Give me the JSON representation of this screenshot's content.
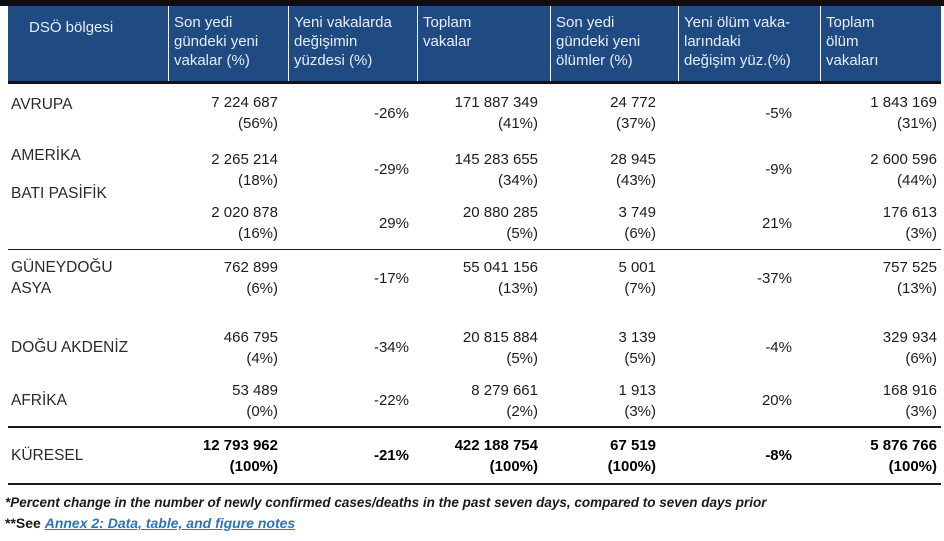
{
  "table": {
    "columns": [
      "DSÖ bölgesi",
      "Son yedi\ngündeki yeni\nvakalar (%)",
      "Yeni vakalarda\ndeğişimin\nyüzdesi (%)",
      "Toplam\nvakalar",
      "Son yedi\ngündeki yeni\nölümler (%)",
      "Yeni ölüm vaka-\nlarındaki\ndeğişim yüz.(%)",
      "Toplam\nölüm\nvakaları"
    ],
    "rows": [
      {
        "region": "AVRUPA",
        "new_cases": "7 224 687",
        "new_cases_pct": "(56%)",
        "cases_change": "-26%",
        "total_cases": "171 887 349",
        "total_cases_pct": "(41%)",
        "new_deaths": "24 772",
        "new_deaths_pct": "(37%)",
        "deaths_change": "-5%",
        "total_deaths": "1 843 169",
        "total_deaths_pct": "(31%)"
      },
      {
        "region": "AMERİKA",
        "new_cases": "2 265 214",
        "new_cases_pct": "(18%)",
        "cases_change": "-29%",
        "total_cases": "145 283 655",
        "total_cases_pct": "(34%)",
        "new_deaths": "28 945",
        "new_deaths_pct": "(43%)",
        "deaths_change": "-9%",
        "total_deaths": "2 600 596",
        "total_deaths_pct": "(44%)"
      },
      {
        "region": "BATI PASİFİK",
        "new_cases": "2 020 878",
        "new_cases_pct": "(16%)",
        "cases_change": "29%",
        "total_cases": "20 880 285",
        "total_cases_pct": "(5%)",
        "new_deaths": "3 749",
        "new_deaths_pct": "(6%)",
        "deaths_change": "21%",
        "total_deaths": "176 613",
        "total_deaths_pct": "(3%)"
      },
      {
        "region": "GÜNEYDOĞU\nASYA",
        "new_cases": "762 899",
        "new_cases_pct": "(6%)",
        "cases_change": "-17%",
        "total_cases": "55 041 156",
        "total_cases_pct": "(13%)",
        "new_deaths": "5 001",
        "new_deaths_pct": "(7%)",
        "deaths_change": "-37%",
        "total_deaths": "757 525",
        "total_deaths_pct": "(13%)"
      },
      {
        "region": "DOĞU AKDENİZ",
        "new_cases": "466 795",
        "new_cases_pct": "(4%)",
        "cases_change": "-34%",
        "total_cases": "20 815 884",
        "total_cases_pct": "(5%)",
        "new_deaths": "3 139",
        "new_deaths_pct": "(5%)",
        "deaths_change": "-4%",
        "total_deaths": "329 934",
        "total_deaths_pct": "(6%)"
      },
      {
        "region": "AFRİKA",
        "new_cases": "53 489",
        "new_cases_pct": "(0%)",
        "cases_change": "-22%",
        "total_cases": "8 279 661",
        "total_cases_pct": "(2%)",
        "new_deaths": "1 913",
        "new_deaths_pct": "(3%)",
        "deaths_change": "20%",
        "total_deaths": "168 916",
        "total_deaths_pct": "(3%)"
      },
      {
        "region": "KÜRESEL",
        "new_cases": "12 793 962",
        "new_cases_pct": "(100%)",
        "cases_change": "-21%",
        "total_cases": "422 188 754",
        "total_cases_pct": "(100%)",
        "new_deaths": "67 519",
        "new_deaths_pct": "(100%)",
        "deaths_change": "-8%",
        "total_deaths": "5 876 766",
        "total_deaths_pct": "(100%)"
      }
    ]
  },
  "footnotes": {
    "note1": "*Percent change in the number of newly confirmed cases/deaths in the past seven days, compared to seven days prior",
    "note2_prefix": "**See ",
    "note2_link": "Annex 2: Data, table, and figure notes"
  },
  "colors": {
    "header_bg": "#1f4b82",
    "link": "#2e75b6",
    "border": "#121212"
  }
}
